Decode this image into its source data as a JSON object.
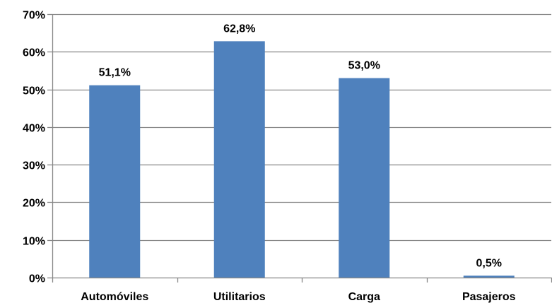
{
  "chart_data": {
    "type": "bar",
    "categories": [
      "Automóviles",
      "Utilitarios",
      "Carga",
      "Pasajeros"
    ],
    "values": [
      51.1,
      62.8,
      53.0,
      0.5
    ],
    "data_labels": [
      "51,1%",
      "62,8%",
      "53,0%",
      "0,5%"
    ],
    "ylim": [
      0,
      70
    ],
    "y_ticks": [
      0,
      10,
      20,
      30,
      40,
      50,
      60,
      70
    ],
    "y_tick_labels": [
      "0%",
      "10%",
      "20%",
      "30%",
      "40%",
      "50%",
      "60%",
      "70%"
    ],
    "grid": true,
    "legend": "none",
    "bar_color": "#4F81BD",
    "grid_color": "#878787"
  }
}
